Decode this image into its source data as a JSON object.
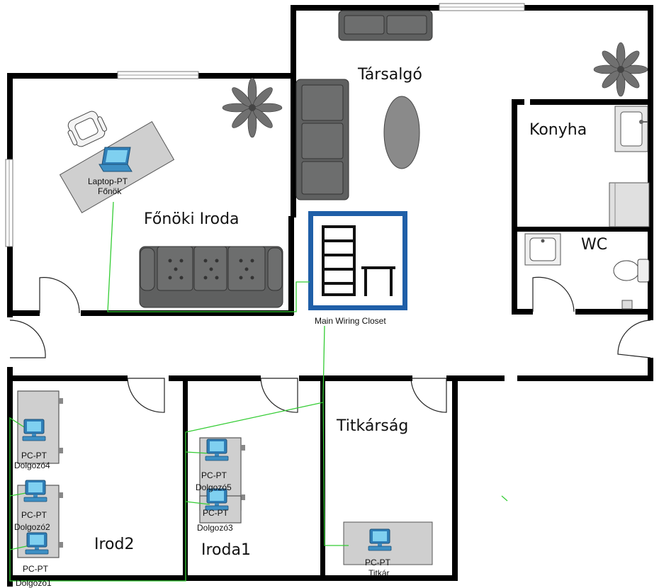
{
  "rooms": {
    "lounge": "Társalgó",
    "kitchen": "Konyha",
    "wc": "WC",
    "boss_office": "Főnöki Iroda",
    "secretariat": "Titkárság",
    "office2": "Irod2",
    "office1": "Iroda1"
  },
  "closet": {
    "label": "Main Wiring Closet"
  },
  "devices": {
    "laptop": {
      "type": "Laptop-PT",
      "name": "Főnök"
    },
    "pc4": {
      "type": "PC-PT",
      "name": "Dolgozó4"
    },
    "pc2": {
      "type": "PC-PT",
      "name": "Dolgozó2"
    },
    "pc1": {
      "type": "PC-PT",
      "name": "Dolgozó1"
    },
    "pc5": {
      "type": "PC-PT",
      "name": "Dolgozó5"
    },
    "pc3": {
      "type": "PC-PT",
      "name": "Dolgozó3"
    },
    "secretary": {
      "type": "PC-PT",
      "name": "Titkár"
    }
  },
  "colors": {
    "wall": "#000000",
    "furniture": "#5f6060",
    "cable": "#33cc33",
    "closet_frame": "#1f5fa8"
  }
}
